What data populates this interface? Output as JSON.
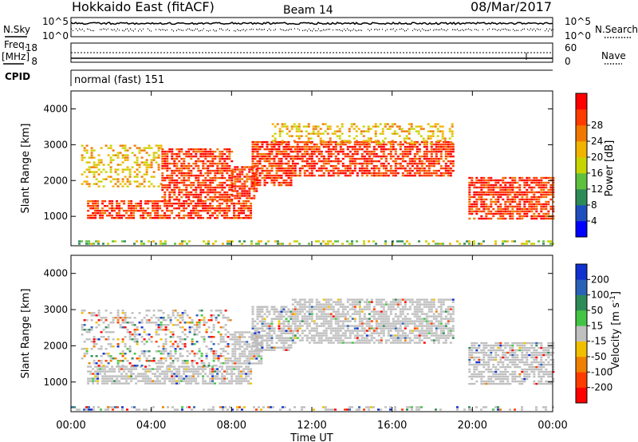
{
  "header": {
    "station": "Hokkaido East (fitACF)",
    "beam": "Beam 14",
    "date": "08/Mar/2017"
  },
  "strip": {
    "nsky_label": "N.Sky",
    "nsky_ticks": [
      "10^5",
      "10^0"
    ],
    "nsearch_label": "N.Search",
    "nsearch_ticks": [
      "10^5",
      "10^0"
    ],
    "freq_label": "Freq.",
    "freq_unit": "[MHz]",
    "freq_ticks": [
      "18",
      "8"
    ],
    "nave_label": "Nave",
    "nave_ticks": [
      "60",
      "0"
    ],
    "cpid_label": "CPID",
    "cpid_text": "normal (fast) 151"
  },
  "colors": {
    "power_scale": [
      "#0000ff",
      "#1f4fbf",
      "#2e8b57",
      "#5fbf3f",
      "#c8d400",
      "#f0b400",
      "#f07800",
      "#ff3c00",
      "#ff0000"
    ],
    "velocity_scale": [
      "#1030d0",
      "#2a62b8",
      "#2e8b57",
      "#44c444",
      "#c0c0c0",
      "#f0c000",
      "#f08000",
      "#ff3c00",
      "#ff0000"
    ],
    "ground_scatter": "#bebebe"
  },
  "chart_data": [
    {
      "type": "heatmap",
      "panel": "power",
      "xlabel": "",
      "ylabel": "Slant Range [km]",
      "x_ticks": [
        "00:00",
        "04:00",
        "08:00",
        "12:00",
        "16:00",
        "20:00",
        "00:00"
      ],
      "x_range_hours": [
        0,
        24
      ],
      "y_ticks": [
        1000,
        2000,
        3000,
        4000
      ],
      "y_range_km": [
        180,
        4500
      ],
      "colorbar": {
        "label": "Power [dB]",
        "ticks": [
          4,
          8,
          12,
          16,
          20,
          24,
          28
        ],
        "range": [
          0,
          32
        ]
      },
      "regions": [
        {
          "t0": 0.8,
          "t1": 9.0,
          "r0": 980,
          "r1": 1450,
          "level": "high"
        },
        {
          "t0": 4.5,
          "t1": 8.0,
          "r0": 1450,
          "r1": 2900,
          "level": "high"
        },
        {
          "t0": 8.0,
          "t1": 9.3,
          "r0": 1500,
          "r1": 2400,
          "level": "high"
        },
        {
          "t0": 9.0,
          "t1": 11.0,
          "r0": 1850,
          "r1": 3100,
          "level": "high"
        },
        {
          "t0": 11.0,
          "t1": 19.0,
          "r0": 2100,
          "r1": 3100,
          "level": "high"
        },
        {
          "t0": 19.8,
          "t1": 24.0,
          "r0": 950,
          "r1": 2100,
          "level": "high"
        },
        {
          "t0": 0.5,
          "t1": 4.5,
          "r0": 1800,
          "r1": 3000,
          "level": "mid"
        },
        {
          "t0": 10.0,
          "t1": 19.0,
          "r0": 3050,
          "r1": 3600,
          "level": "mid"
        },
        {
          "t0": 0.0,
          "t1": 24.0,
          "r0": 200,
          "r1": 330,
          "level": "low"
        }
      ]
    },
    {
      "type": "heatmap",
      "panel": "velocity",
      "xlabel": "Time UT",
      "ylabel": "Slant Range [km]",
      "x_ticks": [
        "00:00",
        "04:00",
        "08:00",
        "12:00",
        "16:00",
        "20:00",
        "00:00"
      ],
      "x_range_hours": [
        0,
        24
      ],
      "y_ticks": [
        1000,
        2000,
        3000,
        4000
      ],
      "y_range_km": [
        180,
        4500
      ],
      "colorbar": {
        "label": "Velocity [m s^-1]",
        "ticks": [
          200,
          100,
          50,
          15,
          -15,
          -50,
          -100,
          -200
        ],
        "range": [
          -250,
          250
        ]
      },
      "regions": [
        {
          "t0": 0.8,
          "t1": 9.0,
          "r0": 980,
          "r1": 1450,
          "level": "ground"
        },
        {
          "t0": 8.0,
          "t1": 9.5,
          "r0": 1500,
          "r1": 2400,
          "level": "ground"
        },
        {
          "t0": 9.0,
          "t1": 11.0,
          "r0": 1850,
          "r1": 3100,
          "level": "ground"
        },
        {
          "t0": 11.0,
          "t1": 19.0,
          "r0": 2100,
          "r1": 3300,
          "level": "ground"
        },
        {
          "t0": 19.8,
          "t1": 24.0,
          "r0": 950,
          "r1": 2100,
          "level": "ground"
        },
        {
          "t0": 0.5,
          "t1": 8.0,
          "r0": 1450,
          "r1": 3000,
          "level": "mixed"
        },
        {
          "t0": 0.0,
          "t1": 24.0,
          "r0": 200,
          "r1": 330,
          "level": "mixed"
        }
      ]
    }
  ]
}
